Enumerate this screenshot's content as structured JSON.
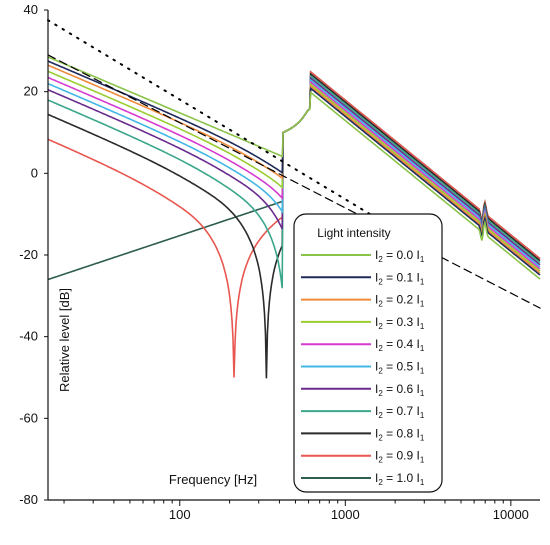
{
  "chart_data": {
    "type": "line",
    "title": "",
    "xlabel": "Frequency [Hz]",
    "ylabel": "Relative level [dB]",
    "xscale": "log",
    "xlim": [
      16,
      15000
    ],
    "ylim": [
      -80,
      40
    ],
    "x_tick_labels": [
      {
        "value": 100,
        "label": "100"
      },
      {
        "value": 1000,
        "label": "1000"
      },
      {
        "value": 10000,
        "label": "10000"
      }
    ],
    "y_tick_labels": [
      {
        "value": 40,
        "label": "40"
      },
      {
        "value": 20,
        "label": "20"
      },
      {
        "value": 0,
        "label": "0"
      },
      {
        "value": -20,
        "label": "-20"
      },
      {
        "value": -40,
        "label": "-40"
      },
      {
        "value": -60,
        "label": "-60"
      },
      {
        "value": -80,
        "label": "-80"
      }
    ],
    "legend": {
      "title": "Light intensity",
      "placement": "lower-right"
    },
    "series": [
      {
        "name": "I2 = 0.0 I1",
        "label_main": "I",
        "sub1": "2",
        "label_mid": " = 0.0 I",
        "sub2": "1",
        "color": "#8bc34a",
        "dip_freq": null,
        "low_level_at_16Hz": 28.5,
        "peak_level": 20
      },
      {
        "name": "I2 = 0.1 I1",
        "label_main": "I",
        "sub1": "2",
        "label_mid": " = 0.1 I",
        "sub2": "1",
        "color": "#1f2a5a",
        "dip_freq": 550,
        "low_level_at_16Hz": 27.5,
        "peak_level": 21
      },
      {
        "name": "I2 = 0.2 I1",
        "label_main": "I",
        "sub1": "2",
        "label_mid": " = 0.2 I",
        "sub2": "1",
        "color": "#ef8a3c",
        "dip_freq": 490,
        "low_level_at_16Hz": 26.5,
        "peak_level": 21.5
      },
      {
        "name": "I2 = 0.3 I1",
        "label_main": "I",
        "sub1": "2",
        "label_mid": " = 0.3 I",
        "sub2": "1",
        "color": "#9acd32",
        "dip_freq": 440,
        "low_level_at_16Hz": 25,
        "peak_level": 22
      },
      {
        "name": "I2 = 0.4 I1",
        "label_main": "I",
        "sub1": "2",
        "label_mid": " = 0.4 I",
        "sub2": "1",
        "color": "#d63bd0",
        "dip_freq": 395,
        "low_level_at_16Hz": 23.5,
        "peak_level": 22.5
      },
      {
        "name": "I2 = 0.5 I1",
        "label_main": "I",
        "sub1": "2",
        "label_mid": " = 0.5 I",
        "sub2": "1",
        "color": "#42b7e6",
        "dip_freq": 350,
        "low_level_at_16Hz": 22,
        "peak_level": 23
      },
      {
        "name": "I2 = 0.6 I1",
        "label_main": "I",
        "sub1": "2",
        "label_mid": " = 0.6 I",
        "sub2": "1",
        "color": "#6a2c8e",
        "dip_freq": 310,
        "low_level_at_16Hz": 20.5,
        "peak_level": 23.5
      },
      {
        "name": "I2 = 0.7 I1",
        "label_main": "I",
        "sub1": "2",
        "label_mid": " = 0.7 I",
        "sub2": "1",
        "color": "#3aa68a",
        "dip_freq": 280,
        "low_level_at_16Hz": 18,
        "peak_level": 24
      },
      {
        "name": "I2 = 0.8 I1",
        "label_main": "I",
        "sub1": "2",
        "label_mid": " = 0.8 I",
        "sub2": "1",
        "color": "#2b2b2b",
        "dip_freq": 195,
        "low_level_at_16Hz": 14.5,
        "peak_level": 24.5
      },
      {
        "name": "I2 = 0.9 I1",
        "label_main": "I",
        "sub1": "2",
        "label_mid": " = 0.9 I",
        "sub2": "1",
        "color": "#e8574f",
        "dip_freq": 130,
        "low_level_at_16Hz": 8.5,
        "peak_level": 25
      },
      {
        "name": "I2 = 1.0 I1",
        "label_main": "I",
        "sub1": "2",
        "label_mid": " = 1.0 I",
        "sub2": "1",
        "color": "#2f5d50",
        "dip_freq": null,
        "low_level_at_16Hz": -26,
        "peak_level": 25
      }
    ],
    "reference_lines": [
      {
        "style": "dashed",
        "color": "#000000",
        "points": [
          [
            16,
            29
          ],
          [
            15000,
            -33
          ]
        ]
      },
      {
        "style": "dotted",
        "color": "#000000",
        "points": [
          [
            16,
            37.5
          ],
          [
            3000,
            -18
          ]
        ]
      }
    ]
  }
}
